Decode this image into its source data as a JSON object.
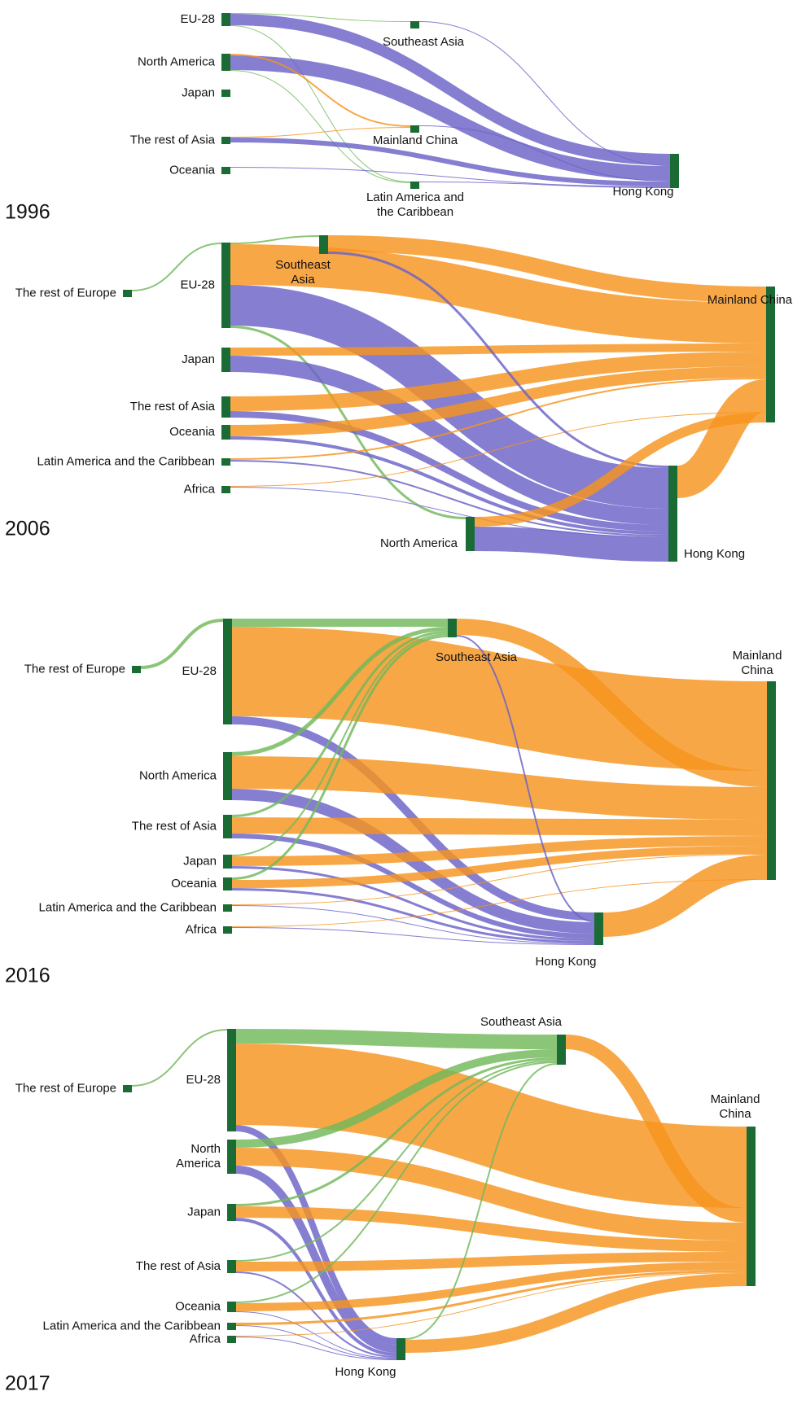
{
  "panels": [
    {
      "year": "1996",
      "nodes": [
        {
          "label": "EU-28"
        },
        {
          "label": "North America"
        },
        {
          "label": "Japan"
        },
        {
          "label": "The rest of Asia"
        },
        {
          "label": "Oceania"
        },
        {
          "label": "Southeast Asia",
          "color": "#72b85a"
        },
        {
          "label": "Mainland China",
          "color": "#f7941d"
        },
        {
          "label": "Latin America and the Caribbean",
          "color": "#72b85a"
        },
        {
          "label": "Hong Kong",
          "color": "#6a62c7"
        }
      ],
      "flows": [
        [
          0,
          8,
          14
        ],
        [
          0,
          5,
          1
        ],
        [
          0,
          7,
          1
        ],
        [
          1,
          8,
          18
        ],
        [
          1,
          6,
          2
        ],
        [
          1,
          7,
          1
        ],
        [
          3,
          8,
          6
        ],
        [
          3,
          6,
          1
        ],
        [
          4,
          8,
          1
        ],
        [
          5,
          8,
          1
        ],
        [
          7,
          8,
          1
        ],
        [
          6,
          8,
          1
        ]
      ]
    },
    {
      "year": "2006",
      "nodes": [
        {
          "label": "EU-28",
          "color": "#72b85a"
        },
        {
          "label": "The rest of Europe"
        },
        {
          "label": "Japan"
        },
        {
          "label": "The rest of Asia"
        },
        {
          "label": "Oceania"
        },
        {
          "label": "Latin America and the Caribbean"
        },
        {
          "label": "Africa"
        },
        {
          "label": "Southeast Asia",
          "color": "#72b85a"
        },
        {
          "label": "North America",
          "color": "#72b85a"
        },
        {
          "label": "Mainland China",
          "color": "#f7941d"
        },
        {
          "label": "Hong Kong",
          "color": "#6a62c7"
        }
      ],
      "flows": [
        [
          1,
          0,
          2
        ],
        [
          0,
          7,
          2
        ],
        [
          0,
          9,
          50
        ],
        [
          0,
          10,
          50
        ],
        [
          0,
          8,
          3
        ],
        [
          2,
          9,
          10
        ],
        [
          2,
          10,
          20
        ],
        [
          3,
          9,
          18
        ],
        [
          3,
          10,
          8
        ],
        [
          4,
          9,
          14
        ],
        [
          4,
          10,
          4
        ],
        [
          5,
          9,
          2
        ],
        [
          5,
          10,
          2
        ],
        [
          6,
          9,
          1
        ],
        [
          6,
          10,
          1
        ],
        [
          7,
          9,
          20
        ],
        [
          7,
          10,
          3
        ],
        [
          8,
          9,
          12
        ],
        [
          8,
          10,
          30
        ],
        [
          10,
          9,
          40
        ]
      ]
    },
    {
      "year": "2016",
      "nodes": [
        {
          "label": "EU-28",
          "color": "#72b85a"
        },
        {
          "label": "The rest of Europe"
        },
        {
          "label": "North America"
        },
        {
          "label": "The rest of Asia"
        },
        {
          "label": "Japan"
        },
        {
          "label": "Oceania"
        },
        {
          "label": "Latin America and the Caribbean"
        },
        {
          "label": "Africa"
        },
        {
          "label": "Southeast Asia",
          "color": "#72b85a"
        },
        {
          "label": "Hong Kong",
          "color": "#6a62c7"
        },
        {
          "label": "Mainland China",
          "color": "#f7941d"
        }
      ],
      "flows": [
        [
          1,
          0,
          4
        ],
        [
          0,
          8,
          10
        ],
        [
          0,
          10,
          110
        ],
        [
          0,
          9,
          10
        ],
        [
          2,
          8,
          5
        ],
        [
          2,
          10,
          40
        ],
        [
          2,
          9,
          14
        ],
        [
          3,
          8,
          3
        ],
        [
          3,
          10,
          20
        ],
        [
          3,
          9,
          6
        ],
        [
          4,
          8,
          2
        ],
        [
          4,
          10,
          12
        ],
        [
          4,
          9,
          3
        ],
        [
          5,
          8,
          3
        ],
        [
          5,
          10,
          10
        ],
        [
          5,
          9,
          3
        ],
        [
          6,
          10,
          1
        ],
        [
          6,
          9,
          1
        ],
        [
          7,
          10,
          1
        ],
        [
          7,
          9,
          1
        ],
        [
          8,
          10,
          20
        ],
        [
          8,
          9,
          2
        ],
        [
          9,
          10,
          30
        ]
      ]
    },
    {
      "year": "2017",
      "nodes": [
        {
          "label": "EU-28",
          "color": "#72b85a"
        },
        {
          "label": "The rest of Europe"
        },
        {
          "label": "North America"
        },
        {
          "label": "Japan"
        },
        {
          "label": "The rest of Asia"
        },
        {
          "label": "Oceania"
        },
        {
          "label": "Latin America and the Caribbean"
        },
        {
          "label": "Africa"
        },
        {
          "label": "Southeast Asia",
          "color": "#72b85a"
        },
        {
          "label": "Hong Kong",
          "color": "#6a62c7"
        },
        {
          "label": "Mainland China",
          "color": "#f7941d"
        }
      ],
      "flows": [
        [
          1,
          0,
          2
        ],
        [
          0,
          8,
          18
        ],
        [
          0,
          10,
          100
        ],
        [
          0,
          9,
          8
        ],
        [
          2,
          8,
          10
        ],
        [
          2,
          10,
          22
        ],
        [
          2,
          9,
          10
        ],
        [
          3,
          8,
          3
        ],
        [
          3,
          10,
          14
        ],
        [
          3,
          9,
          4
        ],
        [
          4,
          8,
          2
        ],
        [
          4,
          10,
          12
        ],
        [
          4,
          9,
          2
        ],
        [
          5,
          8,
          2
        ],
        [
          5,
          10,
          10
        ],
        [
          5,
          9,
          1
        ],
        [
          6,
          10,
          3
        ],
        [
          6,
          9,
          1
        ],
        [
          7,
          10,
          1
        ],
        [
          7,
          9,
          1
        ],
        [
          9,
          8,
          2
        ],
        [
          8,
          10,
          18
        ],
        [
          9,
          10,
          16
        ]
      ]
    }
  ]
}
